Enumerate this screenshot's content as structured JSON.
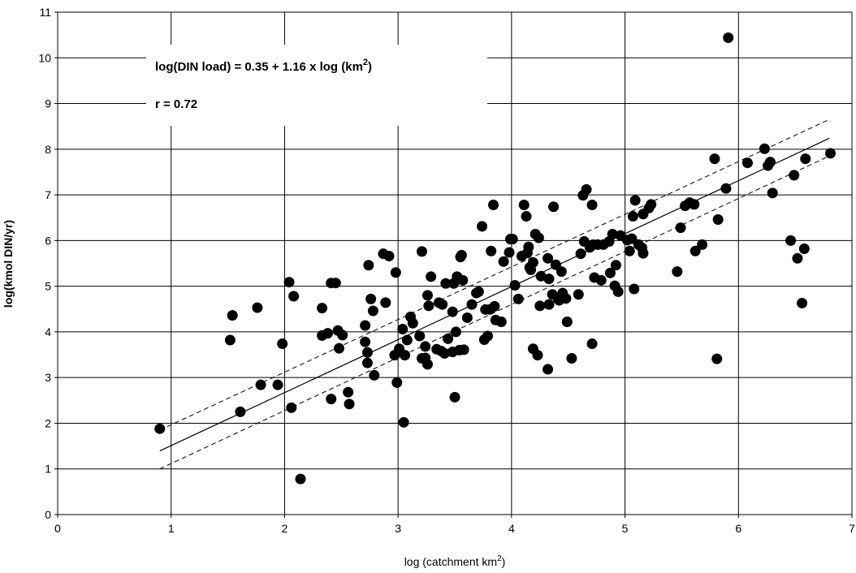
{
  "chart_data": {
    "type": "scatter",
    "title": "",
    "xlabel": "log (catchment km",
    "xlabel_sup": "2",
    "xlabel_end": ")",
    "ylabel": "log(kmol DIN/yr)",
    "xlim": [
      0,
      7
    ],
    "ylim": [
      0,
      11
    ],
    "x_ticks": [
      "0",
      "1",
      "2",
      "3",
      "4",
      "5",
      "6",
      "7"
    ],
    "y_ticks": [
      "0",
      "1",
      "2",
      "3",
      "4",
      "5",
      "6",
      "7",
      "8",
      "9",
      "10",
      "11"
    ],
    "grid": true,
    "annotations": {
      "equation_prefix": "log(DIN load) = 0.35 + 1.16 x log (km",
      "equation_sup": "2",
      "equation_suffix": ")",
      "r_value": "r = 0.72"
    },
    "regression": {
      "intercept": 0.35,
      "slope": 1.16,
      "x_range": [
        0.9,
        6.8
      ]
    },
    "confidence_band": {
      "upper": [
        [
          0.9,
          1.85
        ],
        [
          6.8,
          8.65
        ]
      ],
      "lower": [
        [
          0.9,
          1.0
        ],
        [
          6.8,
          7.85
        ]
      ]
    },
    "colors": {
      "points": "#000000",
      "grid": "#000000",
      "background": "#ffffff"
    },
    "points": [
      [
        0.9,
        1.88
      ],
      [
        1.52,
        3.82
      ],
      [
        1.54,
        4.36
      ],
      [
        1.61,
        2.25
      ],
      [
        1.76,
        4.53
      ],
      [
        1.79,
        2.84
      ],
      [
        1.94,
        2.84
      ],
      [
        1.98,
        3.74
      ],
      [
        2.04,
        5.09
      ],
      [
        2.06,
        2.34
      ],
      [
        2.08,
        4.78
      ],
      [
        2.14,
        0.78
      ],
      [
        2.33,
        4.52
      ],
      [
        2.33,
        3.92
      ],
      [
        2.38,
        3.97
      ],
      [
        2.41,
        2.53
      ],
      [
        2.41,
        5.07
      ],
      [
        2.45,
        5.07
      ],
      [
        2.47,
        4.03
      ],
      [
        2.48,
        3.64
      ],
      [
        2.51,
        3.93
      ],
      [
        2.56,
        2.68
      ],
      [
        2.57,
        2.42
      ],
      [
        2.71,
        4.14
      ],
      [
        2.71,
        3.78
      ],
      [
        2.73,
        3.55
      ],
      [
        2.73,
        3.32
      ],
      [
        2.74,
        5.46
      ],
      [
        2.76,
        4.72
      ],
      [
        2.78,
        4.46
      ],
      [
        2.79,
        3.05
      ],
      [
        2.87,
        5.71
      ],
      [
        2.89,
        4.64
      ],
      [
        2.92,
        5.66
      ],
      [
        2.97,
        3.49
      ],
      [
        2.98,
        5.3
      ],
      [
        2.99,
        2.89
      ],
      [
        3.01,
        3.63
      ],
      [
        3.04,
        4.06
      ],
      [
        3.05,
        2.02
      ],
      [
        3.06,
        3.49
      ],
      [
        3.08,
        3.82
      ],
      [
        3.11,
        4.33
      ],
      [
        3.13,
        4.19
      ],
      [
        3.19,
        3.91
      ],
      [
        3.21,
        3.42
      ],
      [
        3.21,
        5.76
      ],
      [
        3.24,
        3.68
      ],
      [
        3.24,
        3.43
      ],
      [
        3.26,
        3.29
      ],
      [
        3.26,
        4.8
      ],
      [
        3.27,
        4.57
      ],
      [
        3.29,
        5.21
      ],
      [
        3.34,
        3.62
      ],
      [
        3.36,
        4.64
      ],
      [
        3.38,
        3.58
      ],
      [
        3.39,
        4.6
      ],
      [
        3.41,
        3.53
      ],
      [
        3.42,
        5.06
      ],
      [
        3.44,
        3.85
      ],
      [
        3.48,
        3.56
      ],
      [
        3.48,
        4.44
      ],
      [
        3.49,
        5.06
      ],
      [
        3.5,
        2.57
      ],
      [
        3.51,
        4.0
      ],
      [
        3.52,
        5.21
      ],
      [
        3.54,
        3.6
      ],
      [
        3.55,
        5.64
      ],
      [
        3.56,
        5.68
      ],
      [
        3.57,
        5.13
      ],
      [
        3.58,
        3.61
      ],
      [
        3.61,
        4.31
      ],
      [
        3.65,
        4.6
      ],
      [
        3.69,
        4.85
      ],
      [
        3.71,
        4.88
      ],
      [
        3.74,
        6.31
      ],
      [
        3.76,
        3.83
      ],
      [
        3.77,
        4.49
      ],
      [
        3.79,
        3.91
      ],
      [
        3.81,
        4.49
      ],
      [
        3.82,
        5.77
      ],
      [
        3.84,
        6.78
      ],
      [
        3.85,
        4.56
      ],
      [
        3.86,
        4.26
      ],
      [
        3.91,
        4.22
      ],
      [
        3.93,
        5.54
      ],
      [
        3.98,
        5.74
      ],
      [
        3.99,
        6.03
      ],
      [
        4.01,
        6.03
      ],
      [
        4.03,
        5.02
      ],
      [
        4.06,
        4.72
      ],
      [
        4.09,
        5.66
      ],
      [
        4.11,
        6.78
      ],
      [
        4.13,
        6.53
      ],
      [
        4.14,
        5.73
      ],
      [
        4.15,
        5.86
      ],
      [
        4.16,
        5.41
      ],
      [
        4.17,
        5.36
      ],
      [
        4.19,
        3.63
      ],
      [
        4.19,
        5.52
      ],
      [
        4.21,
        6.14
      ],
      [
        4.23,
        3.49
      ],
      [
        4.24,
        6.06
      ],
      [
        4.25,
        4.57
      ],
      [
        4.26,
        5.22
      ],
      [
        4.32,
        5.61
      ],
      [
        4.32,
        3.18
      ],
      [
        4.33,
        5.16
      ],
      [
        4.33,
        4.6
      ],
      [
        4.36,
        4.82
      ],
      [
        4.37,
        6.74
      ],
      [
        4.39,
        5.47
      ],
      [
        4.41,
        4.72
      ],
      [
        4.42,
        4.69
      ],
      [
        4.44,
        5.32
      ],
      [
        4.45,
        4.85
      ],
      [
        4.48,
        4.73
      ],
      [
        4.49,
        4.22
      ],
      [
        4.53,
        3.42
      ],
      [
        4.59,
        4.82
      ],
      [
        4.61,
        5.71
      ],
      [
        4.63,
        6.99
      ],
      [
        4.64,
        5.98
      ],
      [
        4.66,
        7.12
      ],
      [
        4.69,
        5.85
      ],
      [
        4.71,
        6.78
      ],
      [
        4.71,
        3.74
      ],
      [
        4.72,
        5.91
      ],
      [
        4.73,
        5.19
      ],
      [
        4.76,
        5.91
      ],
      [
        4.79,
        5.13
      ],
      [
        4.81,
        5.91
      ],
      [
        4.86,
        5.98
      ],
      [
        4.87,
        5.29
      ],
      [
        4.89,
        6.14
      ],
      [
        4.91,
        5.01
      ],
      [
        4.92,
        5.46
      ],
      [
        4.94,
        4.88
      ],
      [
        4.96,
        6.11
      ],
      [
        5.02,
        6.01
      ],
      [
        5.04,
        5.77
      ],
      [
        5.06,
        6.04
      ],
      [
        5.07,
        6.53
      ],
      [
        5.08,
        4.94
      ],
      [
        5.09,
        6.88
      ],
      [
        5.12,
        5.91
      ],
      [
        5.15,
        5.84
      ],
      [
        5.16,
        5.72
      ],
      [
        5.16,
        6.58
      ],
      [
        5.21,
        6.71
      ],
      [
        5.23,
        6.79
      ],
      [
        5.46,
        5.32
      ],
      [
        5.49,
        6.28
      ],
      [
        5.53,
        6.76
      ],
      [
        5.57,
        6.83
      ],
      [
        5.61,
        6.79
      ],
      [
        5.62,
        5.77
      ],
      [
        5.68,
        5.91
      ],
      [
        5.79,
        7.79
      ],
      [
        5.81,
        3.41
      ],
      [
        5.82,
        6.46
      ],
      [
        5.89,
        7.14
      ],
      [
        5.91,
        10.44
      ],
      [
        6.08,
        7.7
      ],
      [
        6.23,
        8.01
      ],
      [
        6.26,
        7.64
      ],
      [
        6.28,
        7.72
      ],
      [
        6.3,
        7.04
      ],
      [
        6.46,
        6.0
      ],
      [
        6.49,
        7.43
      ],
      [
        6.52,
        5.61
      ],
      [
        6.56,
        4.63
      ],
      [
        6.58,
        5.82
      ],
      [
        6.59,
        7.79
      ],
      [
        6.81,
        7.91
      ]
    ]
  }
}
